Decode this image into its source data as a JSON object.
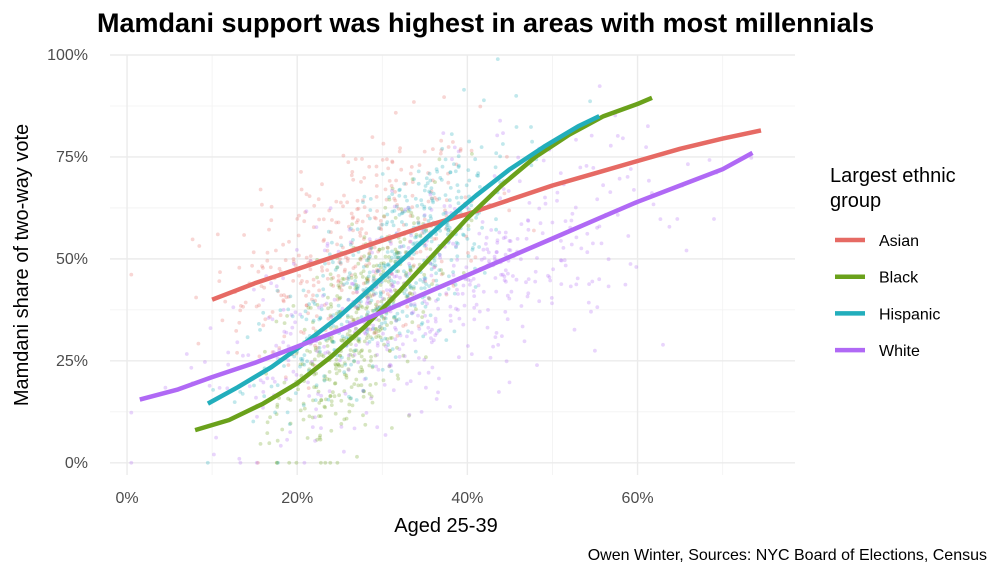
{
  "chart_data": {
    "type": "scatter",
    "title": "Mamdani support was highest in areas with most millennials",
    "xlabel": "Aged 25-39",
    "ylabel": "Mamdani share of two-way vote",
    "caption": "Owen Winter, Sources: NYC Board of Elections, Census",
    "xlim": [
      -0.02,
      0.785
    ],
    "ylim": [
      -0.03,
      1.0
    ],
    "x_ticks": [
      {
        "value": 0.0,
        "label": "0%"
      },
      {
        "value": 0.2,
        "label": "20%"
      },
      {
        "value": 0.4,
        "label": "40%"
      },
      {
        "value": 0.6,
        "label": "60%"
      }
    ],
    "y_ticks": [
      {
        "value": 0.0,
        "label": "0%"
      },
      {
        "value": 0.25,
        "label": "25%"
      },
      {
        "value": 0.5,
        "label": "50%"
      },
      {
        "value": 0.75,
        "label": "75%"
      },
      {
        "value": 1.0,
        "label": "100%"
      }
    ],
    "grid": true,
    "legend": {
      "title_lines": [
        "Largest ethnic",
        "group"
      ],
      "placement": "right"
    },
    "series": [
      {
        "name": "Asian",
        "color": "#e66a64",
        "points_summary": {
          "x_range": [
            0.15,
            0.45
          ],
          "y_range": [
            0.2,
            0.8
          ]
        },
        "trend": [
          {
            "x": 0.1,
            "y": 0.4
          },
          {
            "x": 0.15,
            "y": 0.44
          },
          {
            "x": 0.2,
            "y": 0.475
          },
          {
            "x": 0.25,
            "y": 0.51
          },
          {
            "x": 0.3,
            "y": 0.545
          },
          {
            "x": 0.35,
            "y": 0.58
          },
          {
            "x": 0.4,
            "y": 0.61
          },
          {
            "x": 0.45,
            "y": 0.645
          },
          {
            "x": 0.5,
            "y": 0.68
          },
          {
            "x": 0.55,
            "y": 0.71
          },
          {
            "x": 0.6,
            "y": 0.74
          },
          {
            "x": 0.65,
            "y": 0.77
          },
          {
            "x": 0.7,
            "y": 0.795
          },
          {
            "x": 0.745,
            "y": 0.815
          }
        ]
      },
      {
        "name": "Black",
        "color": "#6aa11b",
        "points_summary": {
          "x_range": [
            0.2,
            0.45
          ],
          "y_range": [
            0.1,
            0.6
          ]
        },
        "trend": [
          {
            "x": 0.08,
            "y": 0.08
          },
          {
            "x": 0.12,
            "y": 0.105
          },
          {
            "x": 0.16,
            "y": 0.145
          },
          {
            "x": 0.2,
            "y": 0.195
          },
          {
            "x": 0.24,
            "y": 0.26
          },
          {
            "x": 0.28,
            "y": 0.335
          },
          {
            "x": 0.32,
            "y": 0.42
          },
          {
            "x": 0.36,
            "y": 0.51
          },
          {
            "x": 0.4,
            "y": 0.6
          },
          {
            "x": 0.44,
            "y": 0.68
          },
          {
            "x": 0.48,
            "y": 0.75
          },
          {
            "x": 0.52,
            "y": 0.805
          },
          {
            "x": 0.56,
            "y": 0.85
          },
          {
            "x": 0.6,
            "y": 0.88
          },
          {
            "x": 0.617,
            "y": 0.895
          }
        ]
      },
      {
        "name": "Hispanic",
        "color": "#22aebc",
        "points_summary": {
          "x_range": [
            0.2,
            0.5
          ],
          "y_range": [
            0.2,
            0.85
          ]
        },
        "trend": [
          {
            "x": 0.095,
            "y": 0.145
          },
          {
            "x": 0.13,
            "y": 0.185
          },
          {
            "x": 0.17,
            "y": 0.235
          },
          {
            "x": 0.21,
            "y": 0.295
          },
          {
            "x": 0.25,
            "y": 0.36
          },
          {
            "x": 0.29,
            "y": 0.435
          },
          {
            "x": 0.33,
            "y": 0.51
          },
          {
            "x": 0.37,
            "y": 0.585
          },
          {
            "x": 0.41,
            "y": 0.655
          },
          {
            "x": 0.45,
            "y": 0.72
          },
          {
            "x": 0.49,
            "y": 0.775
          },
          {
            "x": 0.53,
            "y": 0.825
          },
          {
            "x": 0.555,
            "y": 0.85
          }
        ]
      },
      {
        "name": "White",
        "color": "#b069f5",
        "points_summary": {
          "x_range": [
            0.1,
            0.7
          ],
          "y_range": [
            0.0,
            0.8
          ]
        },
        "trend": [
          {
            "x": 0.015,
            "y": 0.155
          },
          {
            "x": 0.06,
            "y": 0.18
          },
          {
            "x": 0.1,
            "y": 0.21
          },
          {
            "x": 0.15,
            "y": 0.245
          },
          {
            "x": 0.2,
            "y": 0.285
          },
          {
            "x": 0.25,
            "y": 0.325
          },
          {
            "x": 0.3,
            "y": 0.37
          },
          {
            "x": 0.35,
            "y": 0.415
          },
          {
            "x": 0.4,
            "y": 0.46
          },
          {
            "x": 0.45,
            "y": 0.505
          },
          {
            "x": 0.5,
            "y": 0.55
          },
          {
            "x": 0.55,
            "y": 0.595
          },
          {
            "x": 0.6,
            "y": 0.64
          },
          {
            "x": 0.65,
            "y": 0.68
          },
          {
            "x": 0.7,
            "y": 0.72
          },
          {
            "x": 0.735,
            "y": 0.76
          }
        ]
      }
    ]
  }
}
